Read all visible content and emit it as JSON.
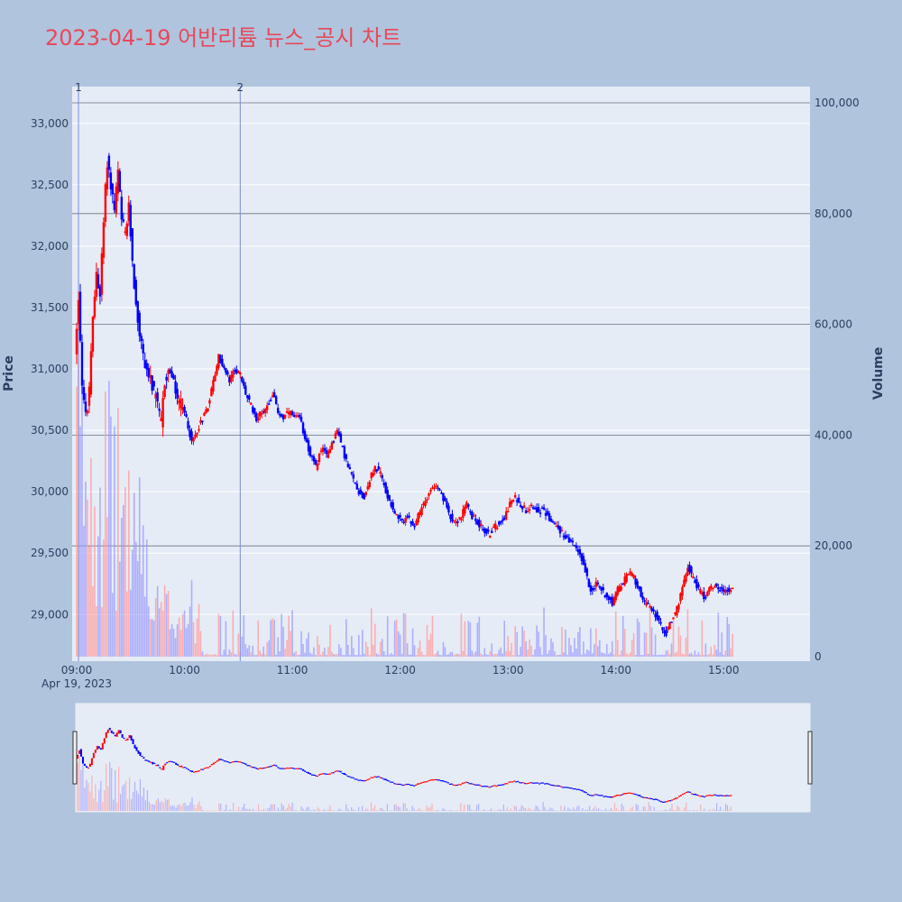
{
  "chart_data": {
    "type": "candlestick",
    "title": "2023-04-19 어반리튬 뉴스_공시 차트",
    "xlabel": "",
    "ylabel": "Price",
    "y2label": "Volume",
    "date_label": "Apr 19, 2023",
    "x_ticks": [
      "09:00",
      "10:00",
      "11:00",
      "12:00",
      "13:00",
      "14:00",
      "15:00"
    ],
    "price_ticks": [
      "29,000",
      "29,500",
      "30,000",
      "30,500",
      "31,000",
      "31,500",
      "32,000",
      "32,500",
      "33,000"
    ],
    "price_tick_values": [
      29000,
      29500,
      30000,
      30500,
      31000,
      31500,
      32000,
      32500,
      33000
    ],
    "volume_ticks": [
      "0",
      "20,000",
      "40,000",
      "60,000",
      "80,000",
      "100,000"
    ],
    "volume_tick_values": [
      0,
      20000,
      40000,
      60000,
      80000,
      100000
    ],
    "price_range": [
      28620,
      33300
    ],
    "volume_range": [
      0,
      100000
    ],
    "time_range_minutes": [
      0,
      398
    ],
    "up_color": "#ff0000",
    "down_color": "#0000ff",
    "grid": true,
    "news_markers": [
      {
        "label": "1",
        "minute": 1
      },
      {
        "label": "2",
        "minute": 91
      }
    ],
    "price_path": [
      [
        0,
        31100
      ],
      [
        2,
        31600
      ],
      [
        4,
        30900
      ],
      [
        6,
        30600
      ],
      [
        8,
        30800
      ],
      [
        10,
        31400
      ],
      [
        12,
        31800
      ],
      [
        14,
        31600
      ],
      [
        16,
        32200
      ],
      [
        18,
        32700
      ],
      [
        20,
        32500
      ],
      [
        22,
        32300
      ],
      [
        24,
        32600
      ],
      [
        26,
        32200
      ],
      [
        28,
        32100
      ],
      [
        30,
        32300
      ],
      [
        32,
        31900
      ],
      [
        34,
        31500
      ],
      [
        36,
        31300
      ],
      [
        38,
        31100
      ],
      [
        40,
        31000
      ],
      [
        42,
        30900
      ],
      [
        44,
        30800
      ],
      [
        46,
        30700
      ],
      [
        48,
        30550
      ],
      [
        50,
        30900
      ],
      [
        53,
        31000
      ],
      [
        56,
        30800
      ],
      [
        59,
        30700
      ],
      [
        62,
        30600
      ],
      [
        65,
        30400
      ],
      [
        68,
        30500
      ],
      [
        71,
        30600
      ],
      [
        74,
        30700
      ],
      [
        77,
        30900
      ],
      [
        80,
        31100
      ],
      [
        83,
        31000
      ],
      [
        86,
        30900
      ],
      [
        89,
        31000
      ],
      [
        92,
        30950
      ],
      [
        95,
        30800
      ],
      [
        98,
        30700
      ],
      [
        101,
        30600
      ],
      [
        104,
        30650
      ],
      [
        107,
        30700
      ],
      [
        110,
        30800
      ],
      [
        113,
        30650
      ],
      [
        116,
        30600
      ],
      [
        119,
        30650
      ],
      [
        122,
        30600
      ],
      [
        125,
        30600
      ],
      [
        128,
        30450
      ],
      [
        131,
        30300
      ],
      [
        134,
        30200
      ],
      [
        137,
        30350
      ],
      [
        140,
        30300
      ],
      [
        143,
        30400
      ],
      [
        146,
        30500
      ],
      [
        149,
        30350
      ],
      [
        152,
        30200
      ],
      [
        155,
        30100
      ],
      [
        158,
        30000
      ],
      [
        161,
        29950
      ],
      [
        164,
        30100
      ],
      [
        167,
        30200
      ],
      [
        170,
        30150
      ],
      [
        173,
        30000
      ],
      [
        176,
        29900
      ],
      [
        179,
        29800
      ],
      [
        182,
        29750
      ],
      [
        185,
        29800
      ],
      [
        188,
        29700
      ],
      [
        191,
        29800
      ],
      [
        194,
        29900
      ],
      [
        197,
        30000
      ],
      [
        200,
        30050
      ],
      [
        203,
        30000
      ],
      [
        206,
        29900
      ],
      [
        209,
        29800
      ],
      [
        212,
        29750
      ],
      [
        215,
        29800
      ],
      [
        218,
        29900
      ],
      [
        221,
        29800
      ],
      [
        224,
        29750
      ],
      [
        227,
        29700
      ],
      [
        230,
        29650
      ],
      [
        233,
        29700
      ],
      [
        236,
        29750
      ],
      [
        239,
        29800
      ],
      [
        242,
        29900
      ],
      [
        245,
        29950
      ],
      [
        248,
        29900
      ],
      [
        251,
        29850
      ],
      [
        254,
        29900
      ],
      [
        257,
        29850
      ],
      [
        260,
        29850
      ],
      [
        263,
        29800
      ],
      [
        266,
        29750
      ],
      [
        269,
        29700
      ],
      [
        272,
        29650
      ],
      [
        275,
        29600
      ],
      [
        278,
        29550
      ],
      [
        281,
        29500
      ],
      [
        284,
        29350
      ],
      [
        287,
        29200
      ],
      [
        290,
        29250
      ],
      [
        293,
        29200
      ],
      [
        296,
        29150
      ],
      [
        299,
        29100
      ],
      [
        302,
        29200
      ],
      [
        305,
        29250
      ],
      [
        308,
        29350
      ],
      [
        311,
        29300
      ],
      [
        314,
        29200
      ],
      [
        317,
        29100
      ],
      [
        320,
        29050
      ],
      [
        323,
        29000
      ],
      [
        326,
        28900
      ],
      [
        329,
        28850
      ],
      [
        332,
        28950
      ],
      [
        335,
        29050
      ],
      [
        338,
        29200
      ],
      [
        341,
        29400
      ],
      [
        344,
        29300
      ],
      [
        347,
        29200
      ],
      [
        350,
        29150
      ],
      [
        353,
        29200
      ],
      [
        356,
        29250
      ],
      [
        359,
        29200
      ],
      [
        362,
        29200
      ],
      [
        365,
        29200
      ]
    ]
  }
}
